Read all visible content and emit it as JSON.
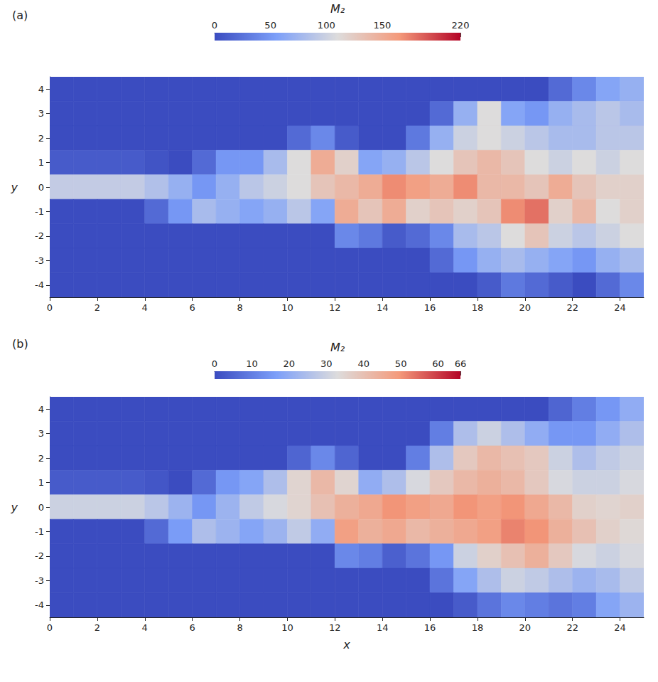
{
  "chart_data": [
    {
      "type": "heatmap",
      "panel": "(a)",
      "colorbar": {
        "title": "M₂",
        "range": [
          0,
          220
        ],
        "ticks": [
          0,
          50,
          100,
          150,
          220
        ]
      },
      "ylabel": "y",
      "xlim": [
        0,
        25
      ],
      "xticks": [
        0,
        2,
        4,
        6,
        8,
        10,
        12,
        14,
        16,
        18,
        20,
        22,
        24
      ],
      "ylim": [
        -4.5,
        4.5
      ],
      "yticks": [
        -4,
        -3,
        -2,
        -1,
        0,
        1,
        2,
        3,
        4
      ],
      "x": [
        0.5,
        1.5,
        2.5,
        3.5,
        4.5,
        5.5,
        6.5,
        7.5,
        8.5,
        9.5,
        10.5,
        11.5,
        12.5,
        13.5,
        14.5,
        15.5,
        16.5,
        17.5,
        18.5,
        19.5,
        20.5,
        21.5,
        22.5,
        23.5,
        24.5
      ],
      "y": [
        4,
        3,
        2,
        1,
        0,
        -1,
        -2,
        -3,
        -4
      ],
      "cells": [
        [
          0,
          0,
          0,
          0,
          0,
          0,
          0,
          0,
          0,
          0,
          0,
          0,
          0,
          0,
          0,
          0,
          0,
          0,
          0,
          0,
          0,
          20,
          40,
          60,
          70
        ],
        [
          0,
          0,
          0,
          0,
          0,
          0,
          0,
          0,
          0,
          0,
          0,
          0,
          0,
          0,
          0,
          0,
          20,
          70,
          110,
          60,
          50,
          70,
          80,
          90,
          80
        ],
        [
          0,
          0,
          0,
          0,
          0,
          0,
          0,
          0,
          0,
          0,
          20,
          40,
          10,
          0,
          0,
          30,
          70,
          100,
          110,
          100,
          90,
          80,
          80,
          90,
          90
        ],
        [
          10,
          10,
          10,
          10,
          5,
          0,
          20,
          50,
          50,
          80,
          110,
          150,
          120,
          60,
          70,
          90,
          110,
          130,
          140,
          130,
          110,
          100,
          110,
          100,
          110
        ],
        [
          95,
          95,
          95,
          95,
          85,
          70,
          50,
          70,
          90,
          100,
          110,
          130,
          140,
          150,
          170,
          160,
          150,
          170,
          140,
          140,
          130,
          150,
          130,
          120,
          120
        ],
        [
          0,
          0,
          0,
          0,
          20,
          50,
          80,
          70,
          60,
          70,
          90,
          60,
          150,
          130,
          150,
          120,
          130,
          120,
          130,
          170,
          180,
          120,
          140,
          110,
          120
        ],
        [
          0,
          0,
          0,
          0,
          0,
          0,
          0,
          0,
          0,
          0,
          0,
          0,
          40,
          30,
          10,
          20,
          40,
          80,
          90,
          110,
          130,
          100,
          90,
          100,
          110
        ],
        [
          0,
          0,
          0,
          0,
          0,
          0,
          0,
          0,
          0,
          0,
          0,
          0,
          0,
          0,
          0,
          0,
          20,
          50,
          70,
          80,
          70,
          60,
          50,
          70,
          80
        ],
        [
          0,
          0,
          0,
          0,
          0,
          0,
          0,
          0,
          0,
          0,
          0,
          0,
          0,
          0,
          0,
          0,
          0,
          0,
          10,
          30,
          20,
          10,
          0,
          20,
          40
        ]
      ]
    },
    {
      "type": "heatmap",
      "panel": "(b)",
      "colorbar": {
        "title": "M₂",
        "range": [
          0,
          66
        ],
        "ticks": [
          0,
          10,
          20,
          30,
          40,
          50,
          60,
          66
        ]
      },
      "xlabel": "x",
      "ylabel": "y",
      "xlim": [
        0,
        25
      ],
      "xticks": [
        0,
        2,
        4,
        6,
        8,
        10,
        12,
        14,
        16,
        18,
        20,
        22,
        24
      ],
      "ylim": [
        -4.5,
        4.5
      ],
      "yticks": [
        -4,
        -3,
        -2,
        -1,
        0,
        1,
        2,
        3,
        4
      ],
      "x": [
        0.5,
        1.5,
        2.5,
        3.5,
        4.5,
        5.5,
        6.5,
        7.5,
        8.5,
        9.5,
        10.5,
        11.5,
        12.5,
        13.5,
        14.5,
        15.5,
        16.5,
        17.5,
        18.5,
        19.5,
        20.5,
        21.5,
        22.5,
        23.5,
        24.5
      ],
      "y": [
        4,
        3,
        2,
        1,
        0,
        -1,
        -2,
        -3,
        -4
      ],
      "cells": [
        [
          0,
          0,
          0,
          0,
          0,
          0,
          0,
          0,
          0,
          0,
          0,
          0,
          0,
          0,
          0,
          0,
          0,
          0,
          0,
          0,
          0,
          5,
          10,
          15,
          20
        ],
        [
          0,
          0,
          0,
          0,
          0,
          0,
          0,
          0,
          0,
          0,
          0,
          0,
          0,
          0,
          0,
          0,
          10,
          25,
          30,
          25,
          20,
          15,
          15,
          20,
          25
        ],
        [
          0,
          0,
          0,
          0,
          0,
          0,
          0,
          0,
          0,
          0,
          5,
          12,
          5,
          0,
          0,
          10,
          25,
          38,
          42,
          40,
          38,
          30,
          25,
          28,
          30
        ],
        [
          3,
          3,
          3,
          3,
          2,
          0,
          6,
          15,
          18,
          25,
          35,
          42,
          35,
          20,
          25,
          32,
          38,
          42,
          44,
          42,
          38,
          32,
          30,
          30,
          32
        ],
        [
          30,
          30,
          30,
          30,
          27,
          22,
          15,
          22,
          28,
          32,
          35,
          40,
          44,
          46,
          50,
          48,
          46,
          50,
          48,
          50,
          46,
          42,
          36,
          35,
          36
        ],
        [
          0,
          0,
          0,
          0,
          6,
          16,
          25,
          22,
          18,
          22,
          28,
          20,
          48,
          44,
          46,
          42,
          44,
          46,
          48,
          52,
          50,
          44,
          40,
          36,
          34
        ],
        [
          0,
          0,
          0,
          0,
          0,
          0,
          0,
          0,
          0,
          0,
          0,
          0,
          12,
          10,
          4,
          8,
          15,
          30,
          36,
          40,
          44,
          38,
          32,
          30,
          32
        ],
        [
          0,
          0,
          0,
          0,
          0,
          0,
          0,
          0,
          0,
          0,
          0,
          0,
          0,
          0,
          0,
          0,
          8,
          18,
          25,
          30,
          28,
          25,
          22,
          24,
          28
        ],
        [
          0,
          0,
          0,
          0,
          0,
          0,
          0,
          0,
          0,
          0,
          0,
          0,
          0,
          0,
          0,
          0,
          0,
          3,
          8,
          12,
          10,
          8,
          10,
          18,
          22
        ]
      ]
    }
  ]
}
